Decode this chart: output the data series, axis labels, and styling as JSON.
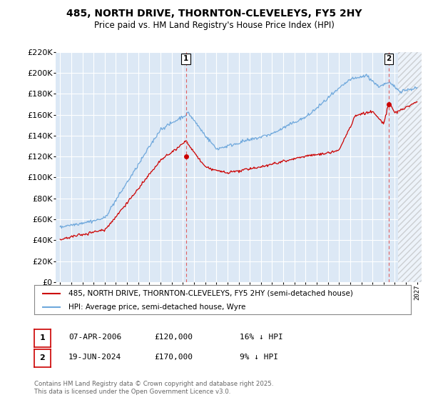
{
  "title": "485, NORTH DRIVE, THORNTON-CLEVELEYS, FY5 2HY",
  "subtitle": "Price paid vs. HM Land Registry's House Price Index (HPI)",
  "legend_line1": "485, NORTH DRIVE, THORNTON-CLEVELEYS, FY5 2HY (semi-detached house)",
  "legend_line2": "HPI: Average price, semi-detached house, Wyre",
  "annotation1": {
    "label": "1",
    "date": "07-APR-2006",
    "price": "£120,000",
    "hpi": "16% ↓ HPI",
    "x_year": 2006.27,
    "price_val": 120000
  },
  "annotation2": {
    "label": "2",
    "date": "19-JUN-2024",
    "price": "£170,000",
    "hpi": "9% ↓ HPI",
    "x_year": 2024.46,
    "price_val": 170000
  },
  "footer": "Contains HM Land Registry data © Crown copyright and database right 2025.\nThis data is licensed under the Open Government Licence v3.0.",
  "hpi_color": "#6fa8dc",
  "price_color": "#cc0000",
  "vline_color": "#e06060",
  "background_color": "#dce8f5",
  "chart_bg": "#dce8f5",
  "grid_color": "#ffffff",
  "ylim": [
    0,
    220000
  ],
  "xlim_start": 1994.6,
  "xlim_end": 2027.4,
  "hatch_start": 2025.3
}
